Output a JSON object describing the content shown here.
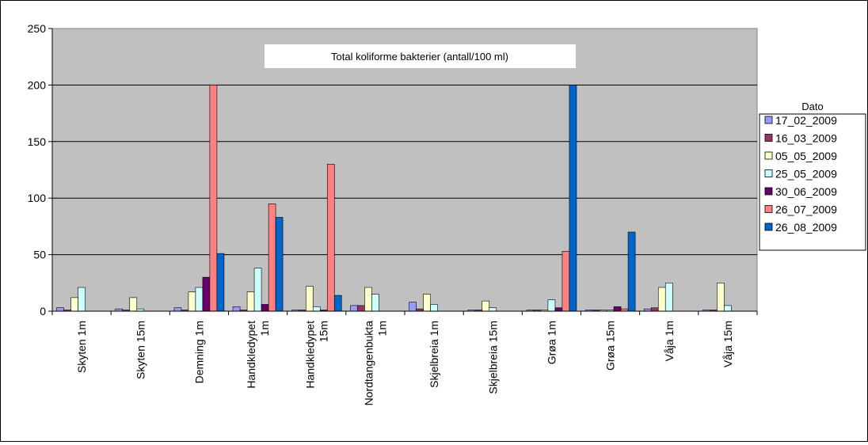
{
  "chart_data": {
    "type": "bar",
    "title": "Total koliforme bakterier (antall/100 ml)",
    "xlabel": "",
    "ylabel": "",
    "ylim": [
      0,
      250
    ],
    "yticks": [
      0,
      50,
      100,
      150,
      200,
      250
    ],
    "grid": true,
    "legend_title": "Dato",
    "legend_position": "right",
    "categories": [
      [
        "Skyten 1m"
      ],
      [
        "Skyten 15m"
      ],
      [
        "Demning 1m"
      ],
      [
        "Handkledypet",
        "1m"
      ],
      [
        "Handkledypet",
        "15m"
      ],
      [
        "Nordtangenbukta",
        "1m"
      ],
      [
        "Skjelbreia 1m"
      ],
      [
        "Skjelbreia 15m"
      ],
      [
        "Grøa 1m"
      ],
      [
        "Grøa 15m"
      ],
      [
        "Våja 1m"
      ],
      [
        "Våja 15m"
      ]
    ],
    "series": [
      {
        "name": "17_02_2009",
        "color": "#9999ff",
        "values": [
          3,
          2,
          3,
          4,
          1,
          5,
          8,
          1,
          1,
          1,
          2,
          1
        ]
      },
      {
        "name": "16_03_2009",
        "color": "#993366",
        "values": [
          1,
          1,
          1,
          1,
          1,
          5,
          2,
          1,
          1,
          1,
          3,
          1
        ]
      },
      {
        "name": "05_05_2009",
        "color": "#ffffcc",
        "values": [
          12,
          12,
          17,
          17,
          22,
          21,
          15,
          9,
          1,
          1,
          21,
          25
        ]
      },
      {
        "name": "25_05_2009",
        "color": "#ccffff",
        "values": [
          21,
          2,
          21,
          38,
          4,
          15,
          6,
          3,
          10,
          1,
          25,
          5
        ]
      },
      {
        "name": "30_06_2009",
        "color": "#660066",
        "values": [
          0,
          0,
          30,
          6,
          1,
          0,
          0,
          0,
          3,
          4,
          0,
          0
        ]
      },
      {
        "name": "26_07_2009",
        "color": "#ff8080",
        "values": [
          0,
          0,
          200,
          95,
          130,
          0,
          0,
          0,
          53,
          2,
          0,
          0
        ]
      },
      {
        "name": "26_08_2009",
        "color": "#0066cc",
        "values": [
          0,
          0,
          51,
          83,
          14,
          0,
          0,
          0,
          200,
          70,
          0,
          0
        ]
      }
    ]
  }
}
